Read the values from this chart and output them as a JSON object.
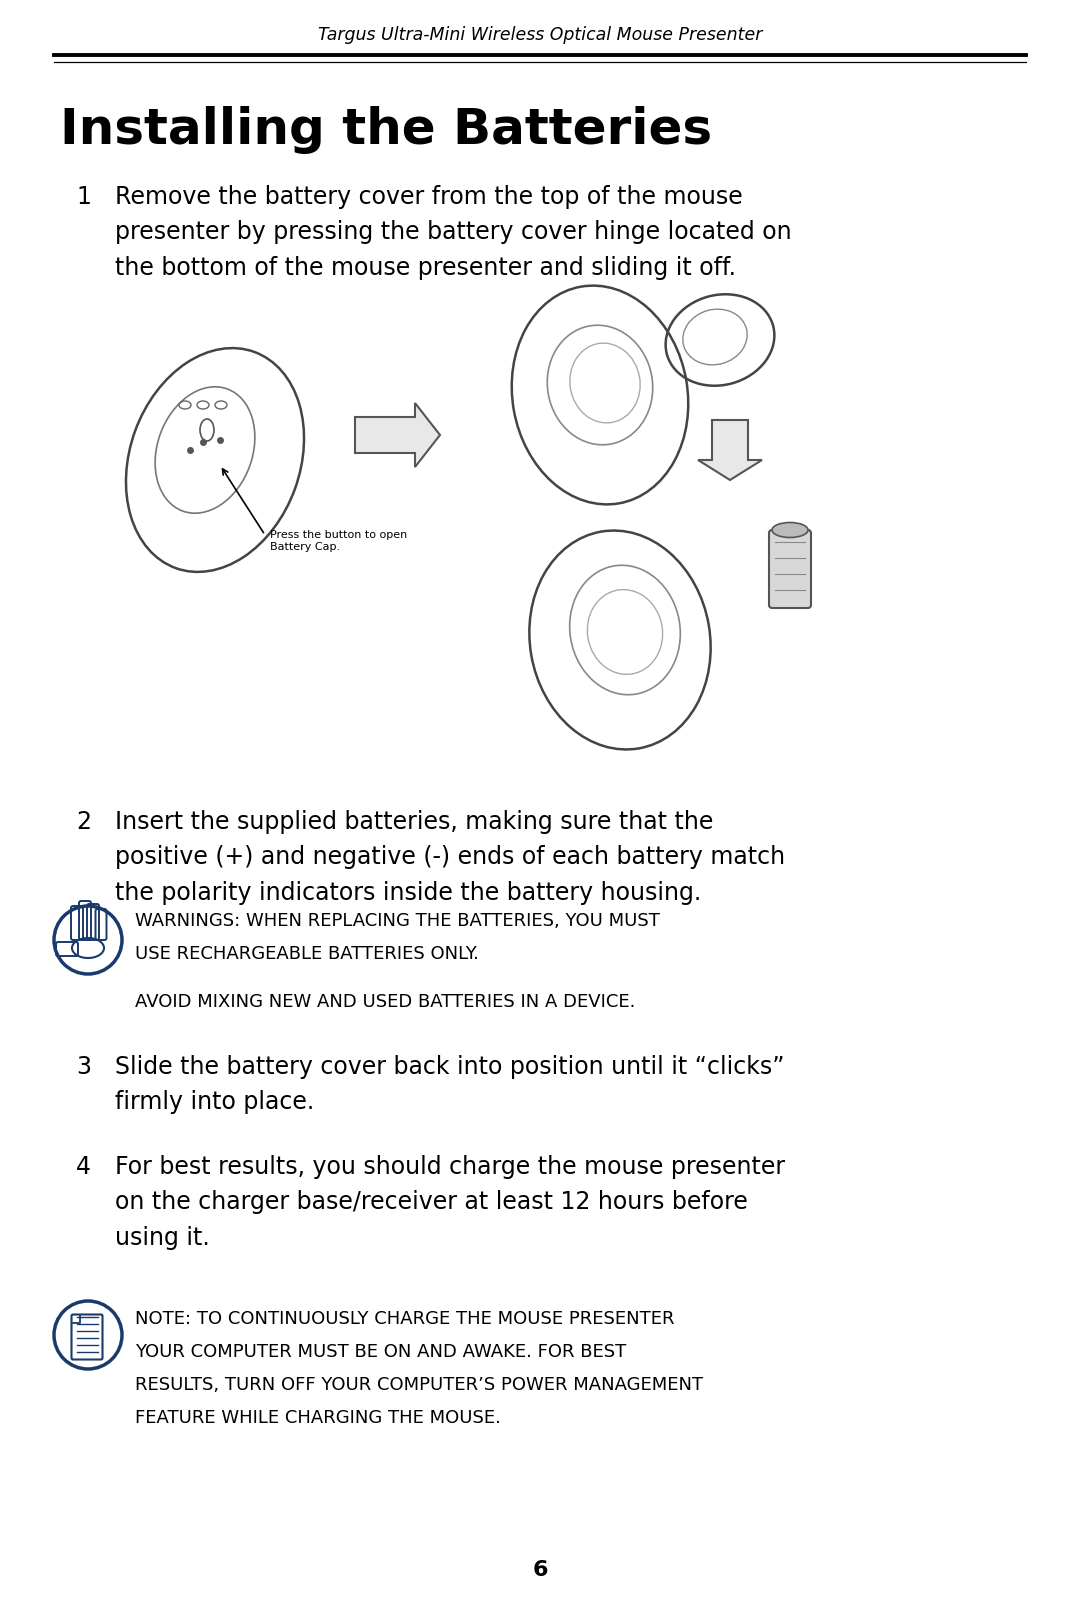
{
  "header_text": "Targus Ultra-Mini Wireless Optical Mouse Presenter",
  "title": "Installing the Batteries",
  "bg_color": "#ffffff",
  "text_color": "#000000",
  "icon_color": "#1a3a6b",
  "step1_num": "1",
  "step1_text": "Remove the battery cover from the top of the mouse\npresenter by pressing the battery cover hinge located on\nthe bottom of the mouse presenter and sliding it off.",
  "step2_num": "2",
  "step2_text": "Insert the supplied batteries, making sure that the\npositive (+) and negative (-) ends of each battery match\nthe polarity indicators inside the battery housing.",
  "step3_num": "3",
  "step3_text": "Slide the battery cover back into position until it “clicks”\nfirmly into place.",
  "step4_num": "4",
  "step4_text": "For best results, you should charge the mouse presenter\non the charger base/receiver at least 12 hours before\nusing it.",
  "warning_bold": "WARNINGS:",
  "warning_line1": " WHEN REPLACING THE BATTERIES, YOU MUST",
  "warning_line2": "USE RECHARGEABLE BATTERIES ONLY.",
  "warning_line3": "AVOID MIXING NEW AND USED BATTERIES IN A DEVICE.",
  "note_bold": "NOTE:",
  "note_line1": " TO CONTINUOUSLY CHARGE THE MOUSE PRESENTER",
  "note_line2": "YOUR COMPUTER MUST BE ON AND AWAKE. FOR BEST",
  "note_line3": "RESULTS, TURN OFF YOUR COMPUTER’S POWER MANAGEMENT",
  "note_line4": "FEATURE WHILE CHARGING THE MOUSE.",
  "page_num": "6",
  "img_label": "Press the button to open\nBattery Cap."
}
